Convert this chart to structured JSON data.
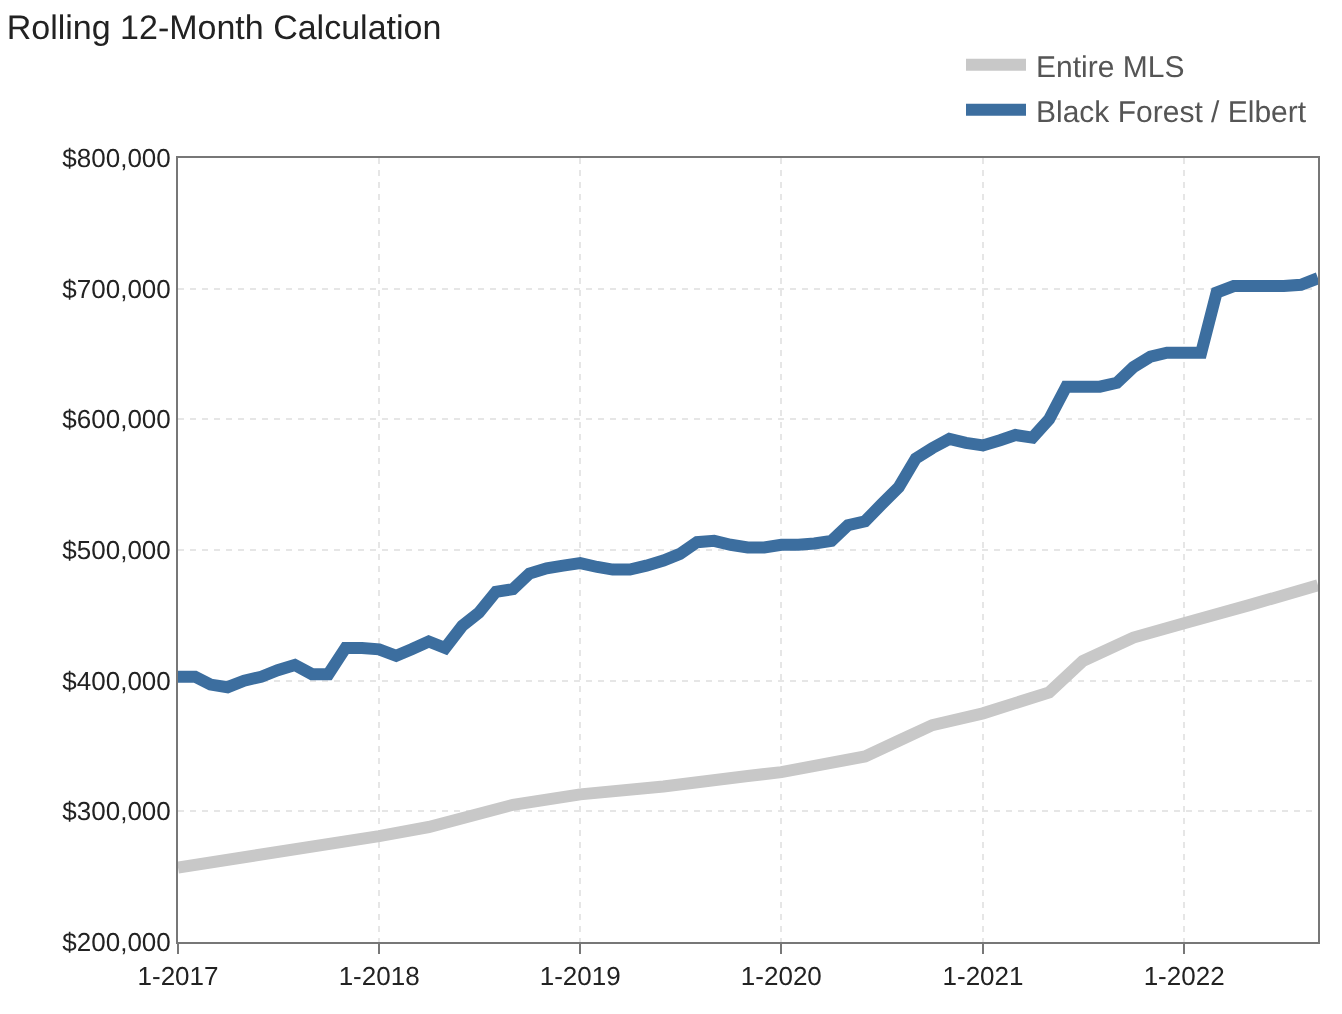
{
  "chart_data": {
    "type": "line",
    "title": "Rolling 12-Month Calculation",
    "xlim": [
      "2017-01",
      "2022-09"
    ],
    "xticks": [
      {
        "value": "2017-01",
        "label": "1-2017"
      },
      {
        "value": "2018-01",
        "label": "1-2018"
      },
      {
        "value": "2019-01",
        "label": "1-2019"
      },
      {
        "value": "2020-01",
        "label": "1-2020"
      },
      {
        "value": "2021-01",
        "label": "1-2021"
      },
      {
        "value": "2022-01",
        "label": "1-2022"
      }
    ],
    "ylim": [
      200000,
      800000
    ],
    "yticks": [
      {
        "value": 200000,
        "label": "$200,000"
      },
      {
        "value": 300000,
        "label": "$300,000"
      },
      {
        "value": 400000,
        "label": "$400,000"
      },
      {
        "value": 500000,
        "label": "$500,000"
      },
      {
        "value": 600000,
        "label": "$600,000"
      },
      {
        "value": 700000,
        "label": "$700,000"
      },
      {
        "value": 800000,
        "label": "$800,000"
      }
    ],
    "grid": true,
    "legend": "top right",
    "marker": "none",
    "line_style": "solid",
    "series": [
      {
        "name": "Entire MLS",
        "color": "#c8c8c8",
        "x": [
          "2017-01",
          "2018-01",
          "2018-04",
          "2018-09",
          "2019-01",
          "2019-06",
          "2019-11",
          "2020-01",
          "2020-06",
          "2020-08",
          "2020-10",
          "2021-01",
          "2021-05",
          "2021-07",
          "2021-10",
          "2022-01",
          "2022-05",
          "2022-09"
        ],
        "values": [
          257000,
          281000,
          288000,
          305000,
          313000,
          319000,
          327000,
          330000,
          342000,
          354000,
          366000,
          375000,
          391000,
          415000,
          433000,
          444000,
          458000,
          473000
        ]
      },
      {
        "name": "Black Forest / Elbert",
        "color": "#3c6e9f",
        "x": [
          "2017-01",
          "2017-02",
          "2017-03",
          "2017-04",
          "2017-05",
          "2017-06",
          "2017-07",
          "2017-08",
          "2017-09",
          "2017-10",
          "2017-11",
          "2017-12",
          "2018-01",
          "2018-02",
          "2018-03",
          "2018-04",
          "2018-05",
          "2018-06",
          "2018-07",
          "2018-08",
          "2018-09",
          "2018-10",
          "2018-11",
          "2018-12",
          "2019-01",
          "2019-02",
          "2019-03",
          "2019-04",
          "2019-05",
          "2019-06",
          "2019-07",
          "2019-08",
          "2019-09",
          "2019-10",
          "2019-11",
          "2019-12",
          "2020-01",
          "2020-02",
          "2020-03",
          "2020-04",
          "2020-05",
          "2020-06",
          "2020-07",
          "2020-08",
          "2020-09",
          "2020-10",
          "2020-11",
          "2020-12",
          "2021-01",
          "2021-02",
          "2021-03",
          "2021-04",
          "2021-05",
          "2021-06",
          "2021-07",
          "2021-08",
          "2021-09",
          "2021-10",
          "2021-11",
          "2021-12",
          "2022-01",
          "2022-02",
          "2022-03",
          "2022-04",
          "2022-05",
          "2022-06",
          "2022-07",
          "2022-08",
          "2022-09"
        ],
        "values": [
          403000,
          403000,
          397000,
          395000,
          400000,
          403000,
          408000,
          412000,
          405000,
          405000,
          425000,
          425000,
          424000,
          419000,
          424000,
          430000,
          425000,
          442000,
          452000,
          468000,
          470000,
          482000,
          486000,
          488000,
          490000,
          487000,
          485000,
          485000,
          488000,
          492000,
          497000,
          506000,
          507000,
          504000,
          502000,
          502000,
          504000,
          504000,
          505000,
          507000,
          519000,
          522000,
          535000,
          548000,
          570000,
          578000,
          585000,
          582000,
          580000,
          584000,
          588000,
          586000,
          600000,
          625000,
          625000,
          625000,
          628000,
          640000,
          648000,
          651000,
          651000,
          651000,
          697000,
          702000,
          702000,
          702000,
          702000,
          703000,
          708000
        ]
      }
    ]
  }
}
